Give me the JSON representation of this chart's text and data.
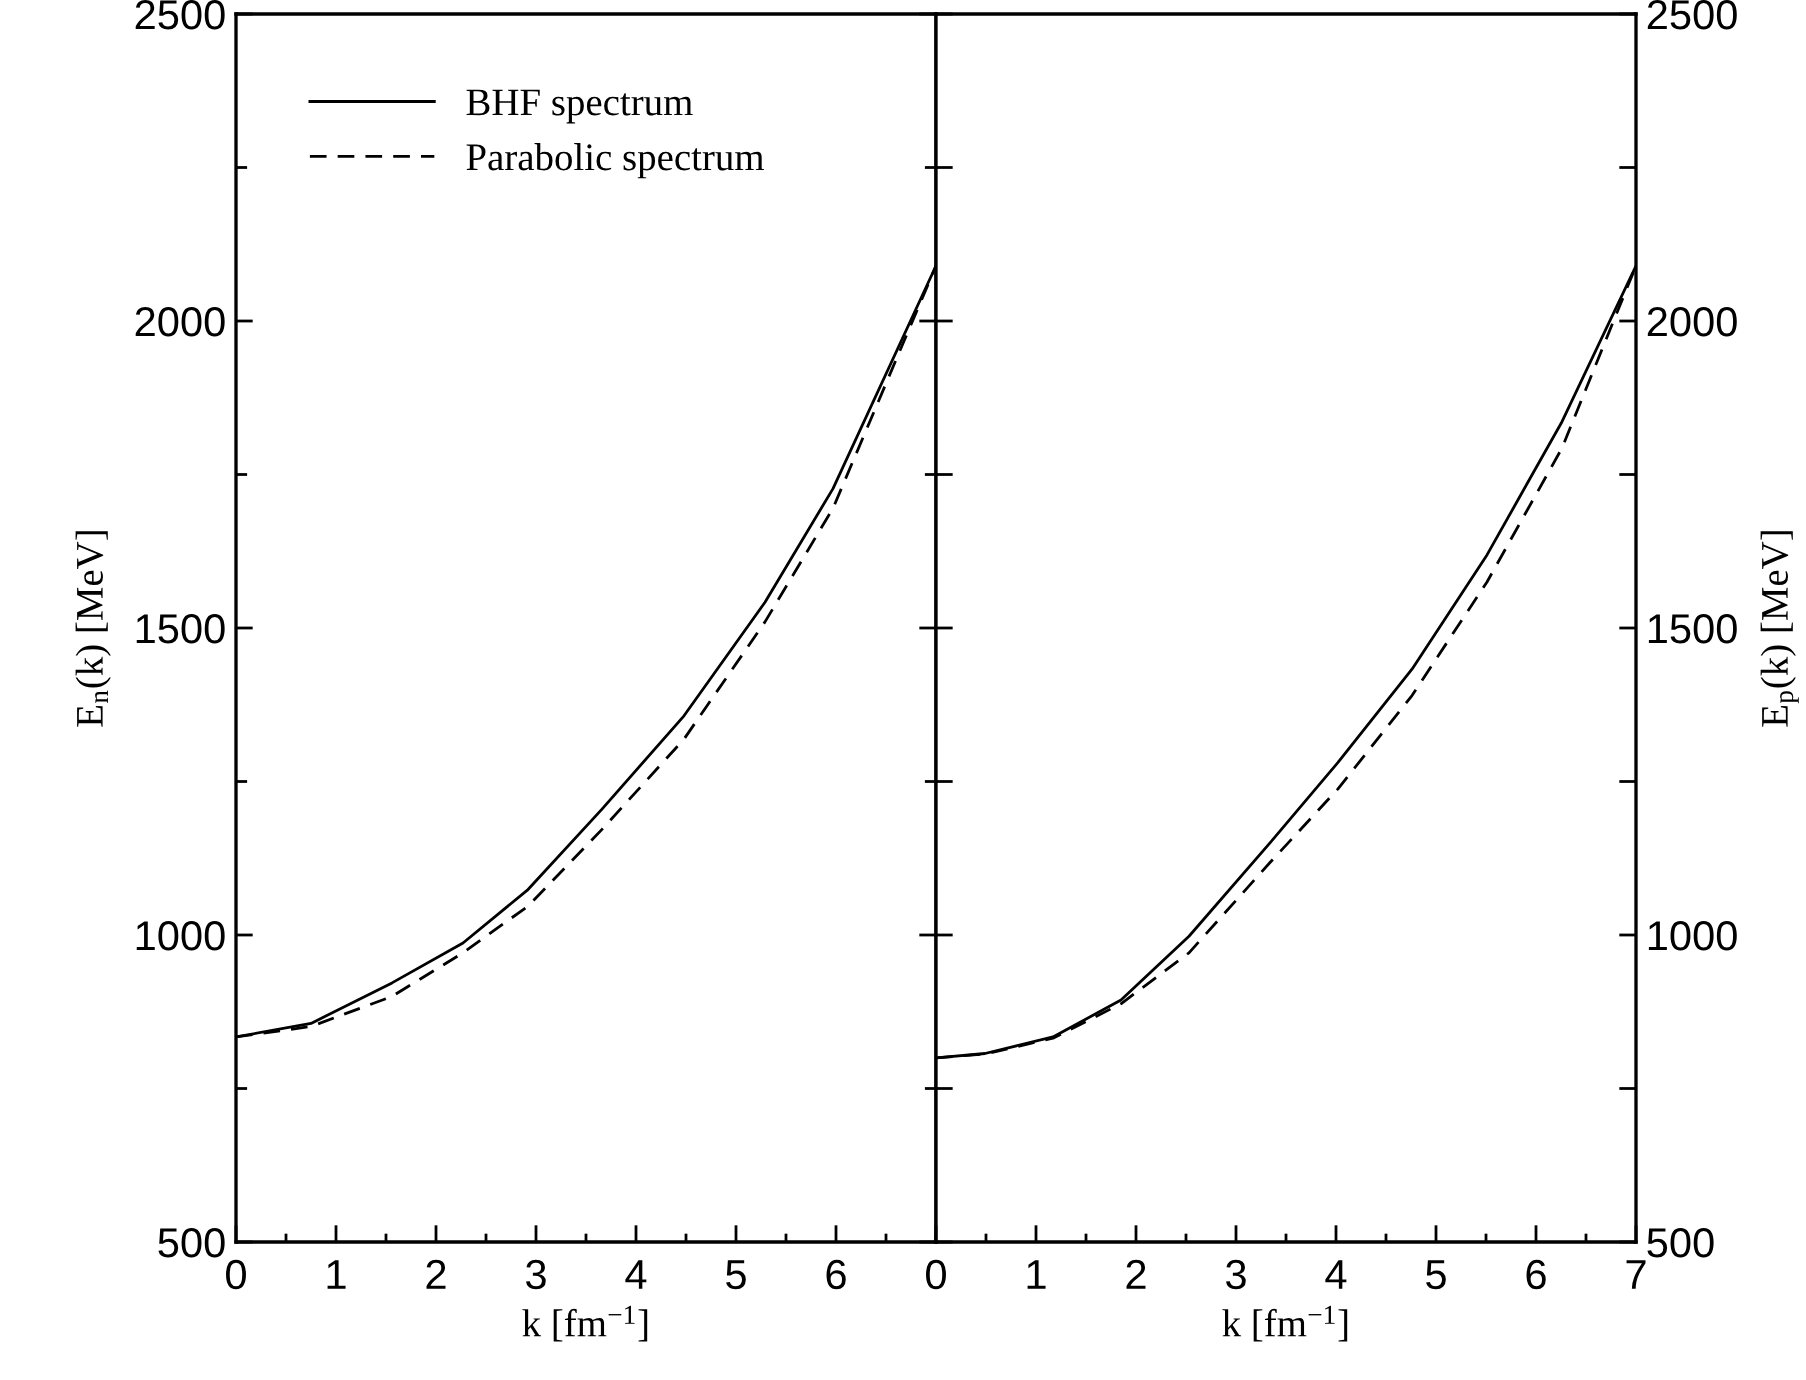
{
  "chart_data": [
    {
      "type": "line",
      "xlabel": "k [fm$^{−1}$]",
      "ylabel": "E$_{n}$(k) [MeV]",
      "legend": "top left",
      "xlim": [
        0,
        7
      ],
      "ylim": [
        500,
        2500
      ],
      "xticks": [
        0,
        {
          "value": 0.5,
          "label": null
        },
        1,
        {
          "value": 1.5,
          "label": null
        },
        2,
        {
          "value": 2.5,
          "label": null
        },
        3,
        {
          "value": 3.5,
          "label": null
        },
        4,
        {
          "value": 4.5,
          "label": null
        },
        5,
        {
          "value": 5.5,
          "label": null
        },
        6,
        {
          "value": 6.5,
          "label": null
        },
        {
          "value": 7,
          "label": null
        }
      ],
      "yticks": [
        500,
        {
          "value": 750,
          "label": null
        },
        1000,
        {
          "value": 1250,
          "label": null
        },
        1500,
        {
          "value": 1750,
          "label": null
        },
        2000,
        {
          "value": 2250,
          "label": null
        },
        2500
      ],
      "series": [
        {
          "name": "BHF spectrum",
          "color": "#000000",
          "line_style": "solid",
          "x": [
            0,
            0.75,
            1.56,
            2.27,
            2.92,
            3.66,
            4.48,
            5.29,
            5.97,
            7
          ],
          "values": [
            834,
            856,
            922,
            987,
            1074,
            1205,
            1357,
            1542,
            1727,
            2090
          ]
        },
        {
          "name": "Parabolic spectrum",
          "color": "#000000",
          "line_style": "dashed",
          "x": [
            0,
            0.75,
            1.56,
            2.27,
            2.92,
            3.66,
            4.48,
            5.29,
            5.97,
            7
          ],
          "values": [
            834,
            851,
            900,
            971,
            1047,
            1172,
            1319,
            1510,
            1695,
            2090
          ]
        }
      ]
    },
    {
      "type": "line",
      "xlabel": "k [fm$^{−1}$]",
      "y2label": "E$_{p}$(k) [MeV]",
      "xlim": [
        0,
        7
      ],
      "y2lim": [
        500,
        2500
      ],
      "xticks": [
        0,
        {
          "value": 0.5,
          "label": null
        },
        1,
        {
          "value": 1.5,
          "label": null
        },
        2,
        {
          "value": 2.5,
          "label": null
        },
        3,
        {
          "value": 3.5,
          "label": null
        },
        4,
        {
          "value": 4.5,
          "label": null
        },
        5,
        {
          "value": 5.5,
          "label": null
        },
        6,
        {
          "value": 6.5,
          "label": null
        },
        7
      ],
      "y2ticks": [
        500,
        {
          "value": 750,
          "label": null
        },
        1000,
        {
          "value": 1250,
          "label": null
        },
        1500,
        {
          "value": 1750,
          "label": null
        },
        2000,
        {
          "value": 2250,
          "label": null
        },
        2500
      ],
      "series": [
        {
          "color": "#000000",
          "line_style": "solid",
          "axis": "y2",
          "x": [
            0,
            0.49,
            1.17,
            1.85,
            2.53,
            3.34,
            4.02,
            4.76,
            5.51,
            6.26,
            7
          ],
          "values": [
            800,
            807,
            834,
            894,
            998,
            1150,
            1281,
            1433,
            1619,
            1836,
            2090
          ]
        },
        {
          "color": "#000000",
          "line_style": "dashed",
          "axis": "y2",
          "x": [
            0,
            0.49,
            1.17,
            1.85,
            2.53,
            3.34,
            4.02,
            4.76,
            5.51,
            6.26,
            7
          ],
          "values": [
            800,
            806,
            832,
            888,
            971,
            1118,
            1238,
            1390,
            1575,
            1793,
            2090
          ]
        }
      ]
    }
  ]
}
